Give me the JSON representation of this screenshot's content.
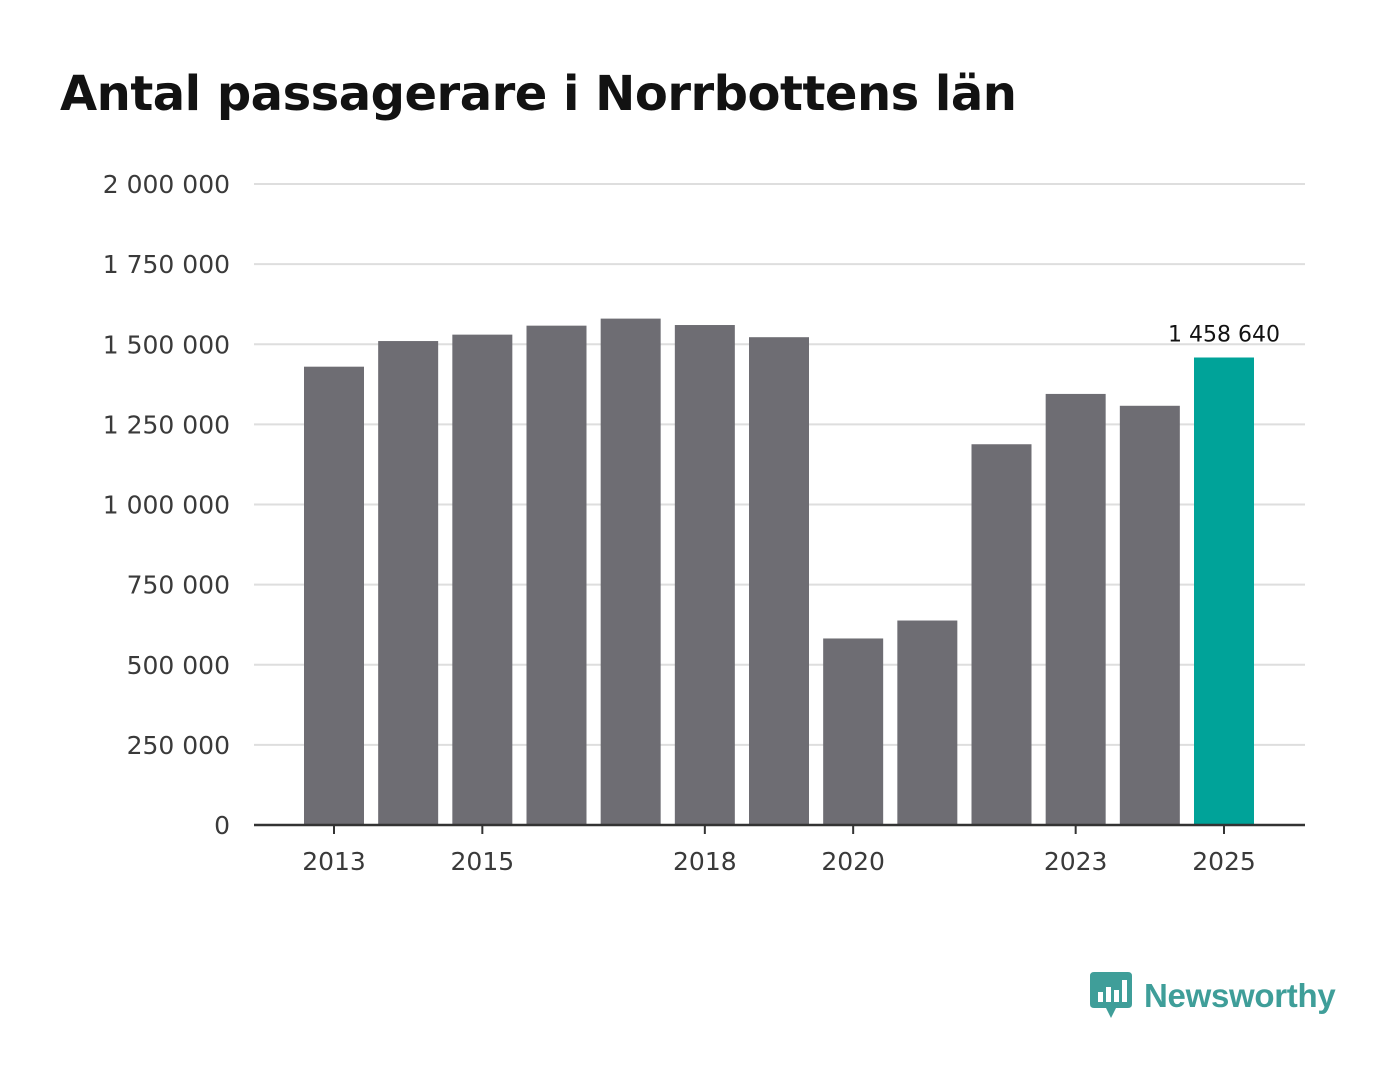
{
  "title": "Antal passagerare i Norrbottens län",
  "brand": {
    "name": "Newsworthy",
    "color": "#3f9e99"
  },
  "colors": {
    "bar": "#6e6d73",
    "highlight": "#00a399",
    "grid": "#dedede",
    "axis": "#333333"
  },
  "chart_data": {
    "type": "bar",
    "title": "Antal passagerare i Norrbottens län",
    "xlabel": "",
    "ylabel": "",
    "categories": [
      "2013",
      "2014",
      "2015",
      "2016",
      "2017",
      "2018",
      "2019",
      "2020",
      "2021",
      "2022",
      "2023",
      "2024",
      "2025"
    ],
    "values": [
      1430000,
      1510000,
      1530000,
      1558000,
      1580000,
      1560000,
      1522000,
      582000,
      638000,
      1188000,
      1345000,
      1308000,
      1458640
    ],
    "x_tick_labels": [
      "2013",
      "2015",
      "2018",
      "2020",
      "2023",
      "2025"
    ],
    "y_ticks": [
      0,
      250000,
      500000,
      750000,
      1000000,
      1250000,
      1500000,
      1750000,
      2000000
    ],
    "y_tick_labels": [
      "0",
      "250 000",
      "500 000",
      "750 000",
      "1 000 000",
      "1 250 000",
      "1 500 000",
      "1 750 000",
      "2 000 000"
    ],
    "ylim": [
      0,
      2000000
    ],
    "grid": true,
    "highlight_index": 12,
    "highlight_label": "1 458 640"
  }
}
